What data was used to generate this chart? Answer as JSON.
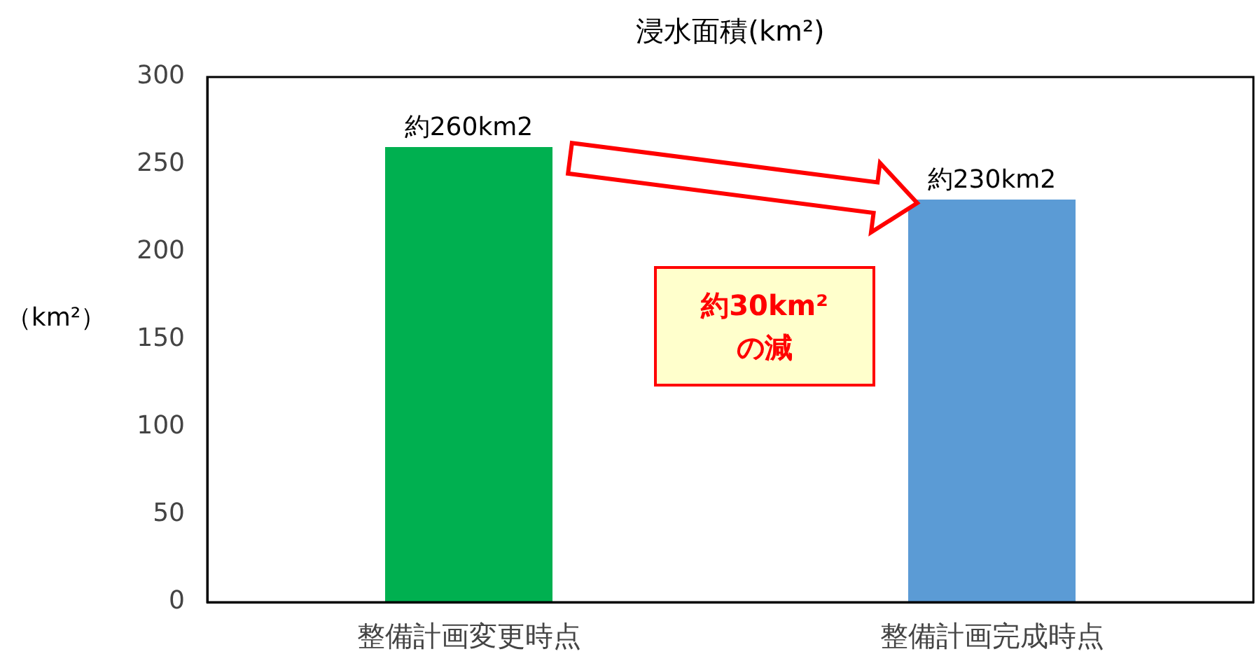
{
  "chart_data": {
    "type": "bar",
    "title": "浸水面積(km²)",
    "ylabel": "（km²）",
    "categories": [
      "整備計画変更時点",
      "整備計画完成時点"
    ],
    "values": [
      260,
      230
    ],
    "colors": [
      "#00b050",
      "#5b9bd5"
    ],
    "value_labels": [
      "約260km2",
      "約230km2"
    ],
    "ylim": [
      0,
      300
    ],
    "yticks": [
      0,
      50,
      100,
      150,
      200,
      250,
      300
    ],
    "annotations": [
      "約30km²\nの減"
    ],
    "grid": false,
    "legend": false
  }
}
